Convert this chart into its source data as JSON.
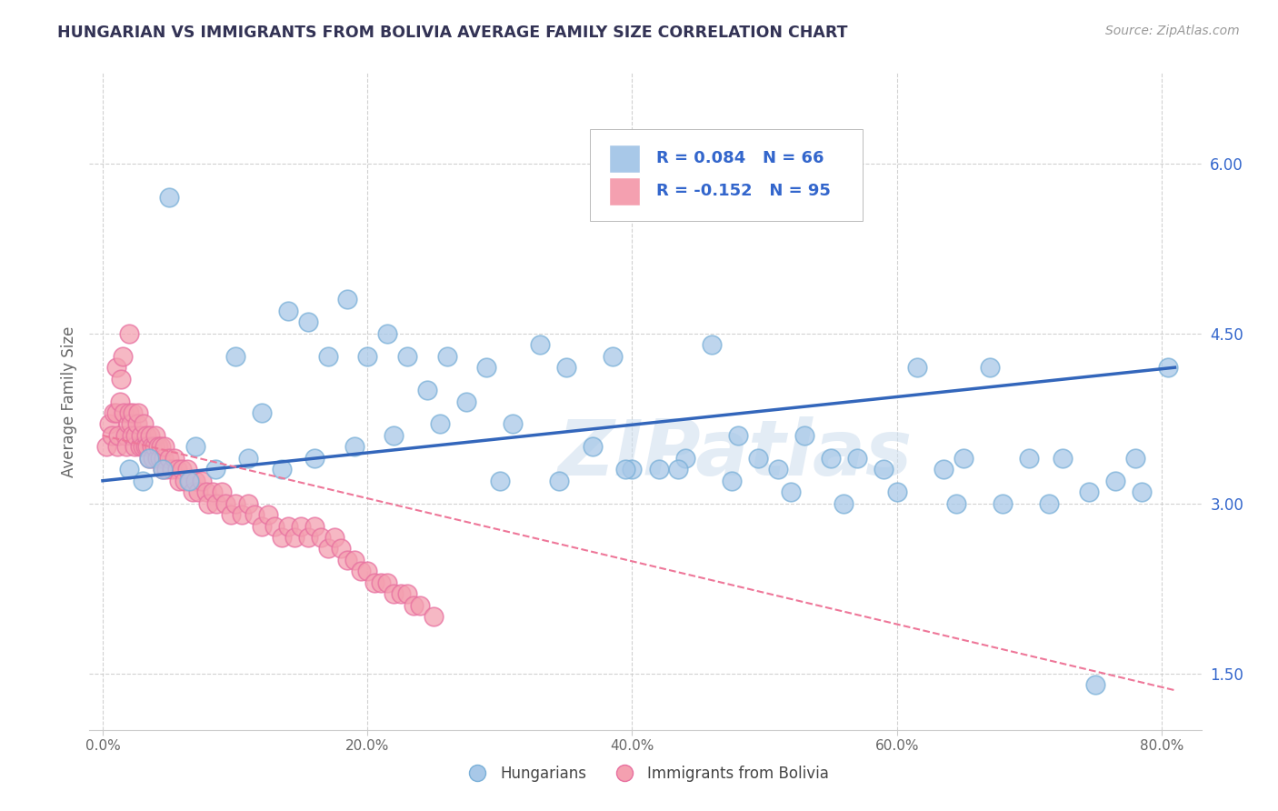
{
  "title": "HUNGARIAN VS IMMIGRANTS FROM BOLIVIA AVERAGE FAMILY SIZE CORRELATION CHART",
  "source": "Source: ZipAtlas.com",
  "ylabel": "Average Family Size",
  "xlabel_ticks": [
    "0.0%",
    "20.0%",
    "40.0%",
    "60.0%",
    "80.0%"
  ],
  "xlabel_vals": [
    0,
    20,
    40,
    60,
    80
  ],
  "ylim": [
    1.0,
    6.8
  ],
  "xlim": [
    -1,
    83
  ],
  "yticks": [
    1.5,
    3.0,
    4.5,
    6.0
  ],
  "ytick_labels": [
    "1.50",
    "3.00",
    "4.50",
    "6.00"
  ],
  "blue_R": 0.084,
  "blue_N": 66,
  "pink_R": -0.152,
  "pink_N": 95,
  "blue_color": "#a8c8e8",
  "pink_color": "#f4a0b0",
  "blue_edge_color": "#7ab0d8",
  "pink_edge_color": "#e870a0",
  "blue_line_color": "#3366bb",
  "pink_line_color": "#ee7799",
  "title_color": "#333355",
  "watermark": "ZIPatlas",
  "legend_color": "#3366cc",
  "blue_x": [
    2.0,
    3.5,
    5.0,
    7.0,
    10.0,
    12.0,
    14.0,
    15.5,
    17.0,
    18.5,
    20.0,
    21.5,
    23.0,
    24.5,
    26.0,
    27.5,
    29.0,
    31.0,
    33.0,
    35.0,
    37.0,
    38.5,
    40.0,
    42.0,
    44.0,
    46.0,
    48.0,
    49.5,
    51.0,
    53.0,
    55.0,
    57.0,
    59.0,
    61.5,
    63.5,
    65.0,
    67.0,
    70.0,
    72.5,
    74.5,
    76.5,
    78.5,
    3.0,
    4.5,
    6.5,
    8.5,
    11.0,
    13.5,
    16.0,
    19.0,
    22.0,
    25.5,
    30.0,
    34.5,
    39.5,
    43.5,
    47.5,
    52.0,
    56.0,
    60.0,
    64.5,
    68.0,
    71.5,
    75.0,
    78.0,
    80.5
  ],
  "blue_y": [
    3.3,
    3.4,
    5.7,
    3.5,
    4.3,
    3.8,
    4.7,
    4.6,
    4.3,
    4.8,
    4.3,
    4.5,
    4.3,
    4.0,
    4.3,
    3.9,
    4.2,
    3.7,
    4.4,
    4.2,
    3.5,
    4.3,
    3.3,
    3.3,
    3.4,
    4.4,
    3.6,
    3.4,
    3.3,
    3.6,
    3.4,
    3.4,
    3.3,
    4.2,
    3.3,
    3.4,
    4.2,
    3.4,
    3.4,
    3.1,
    3.2,
    3.1,
    3.2,
    3.3,
    3.2,
    3.3,
    3.4,
    3.3,
    3.4,
    3.5,
    3.6,
    3.7,
    3.2,
    3.2,
    3.3,
    3.3,
    3.2,
    3.1,
    3.0,
    3.1,
    3.0,
    3.0,
    3.0,
    1.4,
    3.4,
    4.2
  ],
  "pink_x": [
    0.3,
    0.5,
    0.7,
    0.8,
    1.0,
    1.0,
    1.1,
    1.2,
    1.3,
    1.4,
    1.5,
    1.6,
    1.7,
    1.8,
    1.9,
    2.0,
    2.0,
    2.1,
    2.2,
    2.3,
    2.4,
    2.5,
    2.6,
    2.7,
    2.8,
    2.9,
    3.0,
    3.1,
    3.2,
    3.3,
    3.4,
    3.5,
    3.6,
    3.7,
    3.8,
    3.9,
    4.0,
    4.1,
    4.2,
    4.3,
    4.4,
    4.5,
    4.6,
    4.7,
    4.8,
    5.0,
    5.2,
    5.4,
    5.6,
    5.8,
    6.0,
    6.2,
    6.4,
    6.6,
    6.8,
    7.0,
    7.2,
    7.5,
    7.8,
    8.0,
    8.3,
    8.6,
    9.0,
    9.3,
    9.7,
    10.0,
    10.5,
    11.0,
    11.5,
    12.0,
    12.5,
    13.0,
    13.5,
    14.0,
    14.5,
    15.0,
    15.5,
    16.0,
    16.5,
    17.0,
    17.5,
    18.0,
    18.5,
    19.0,
    19.5,
    20.0,
    20.5,
    21.0,
    21.5,
    22.0,
    22.5,
    23.0,
    23.5,
    24.0,
    25.0
  ],
  "pink_y": [
    3.5,
    3.7,
    3.6,
    3.8,
    3.8,
    4.2,
    3.5,
    3.6,
    3.9,
    4.1,
    4.3,
    3.8,
    3.6,
    3.5,
    3.7,
    4.5,
    3.8,
    3.7,
    3.6,
    3.8,
    3.5,
    3.6,
    3.7,
    3.8,
    3.5,
    3.6,
    3.5,
    3.7,
    3.5,
    3.6,
    3.5,
    3.4,
    3.6,
    3.5,
    3.4,
    3.5,
    3.6,
    3.4,
    3.5,
    3.4,
    3.5,
    3.3,
    3.4,
    3.5,
    3.3,
    3.4,
    3.3,
    3.4,
    3.3,
    3.2,
    3.3,
    3.2,
    3.3,
    3.2,
    3.1,
    3.2,
    3.1,
    3.2,
    3.1,
    3.0,
    3.1,
    3.0,
    3.1,
    3.0,
    2.9,
    3.0,
    2.9,
    3.0,
    2.9,
    2.8,
    2.9,
    2.8,
    2.7,
    2.8,
    2.7,
    2.8,
    2.7,
    2.8,
    2.7,
    2.6,
    2.7,
    2.6,
    2.5,
    2.5,
    2.4,
    2.4,
    2.3,
    2.3,
    2.3,
    2.2,
    2.2,
    2.2,
    2.1,
    2.1,
    2.0
  ],
  "blue_line_x0": 0,
  "blue_line_x1": 81,
  "blue_line_y0": 3.2,
  "blue_line_y1": 4.2,
  "pink_line_x0": 0,
  "pink_line_x1": 81,
  "pink_line_y0": 3.6,
  "pink_line_y1": 1.35
}
